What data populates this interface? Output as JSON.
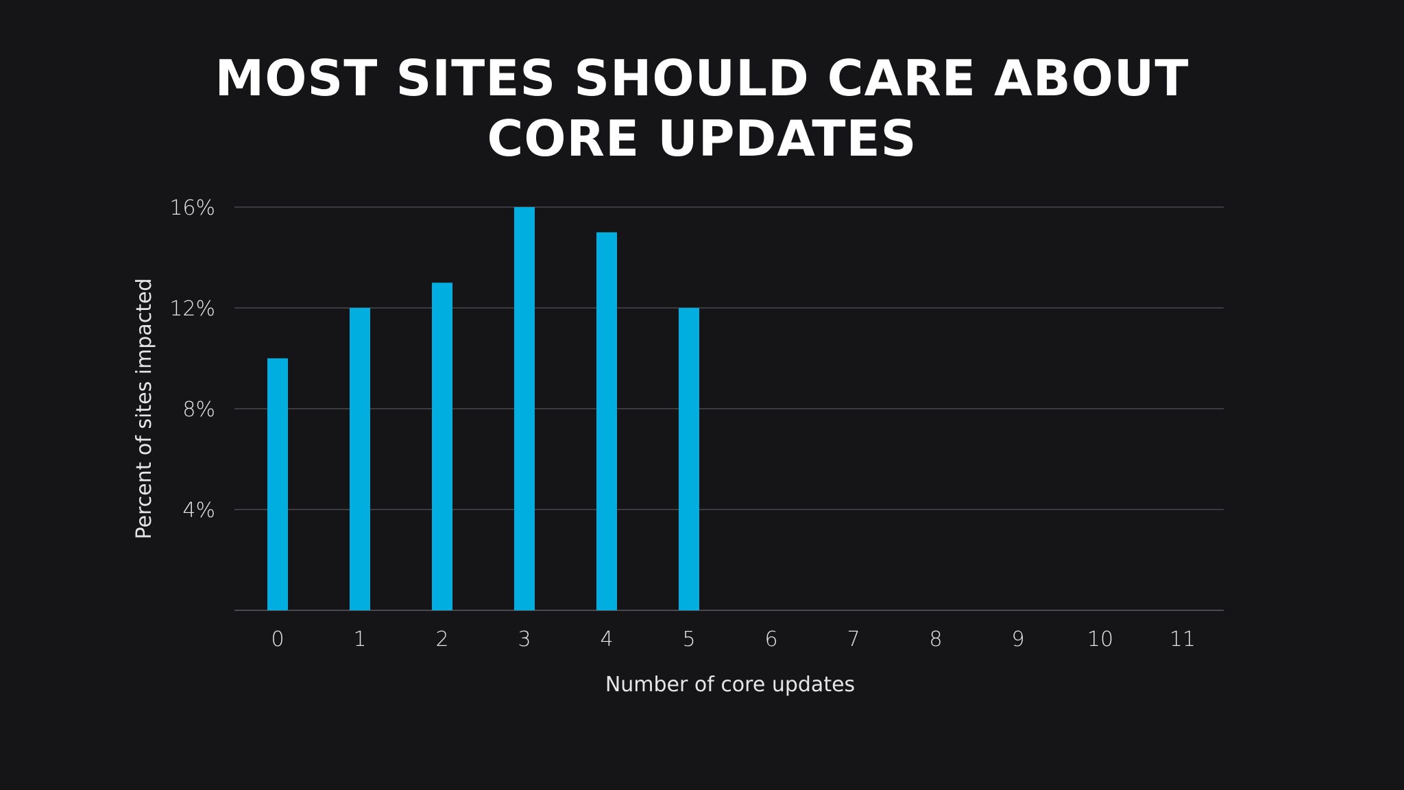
{
  "colors": {
    "background": "#151517",
    "bar": "#00aee0",
    "grid": "#4a4a4e",
    "text": "#e6e6e6",
    "title": "#ffffff"
  },
  "chart_data": {
    "type": "bar",
    "title_lines": [
      "MOST SITES SHOULD CARE ABOUT",
      "CORE UPDATES"
    ],
    "xlabel": "Number of core updates",
    "ylabel": "Percent of sites impacted",
    "categories": [
      "0",
      "1",
      "2",
      "3",
      "4",
      "5",
      "6",
      "7",
      "8",
      "9",
      "10",
      "11"
    ],
    "values": [
      10,
      12,
      13,
      16,
      15,
      12,
      null,
      null,
      null,
      null,
      null,
      null
    ],
    "ylim": [
      0,
      16
    ],
    "yticks": [
      4,
      8,
      12,
      16
    ],
    "ytick_labels": [
      "4%",
      "8%",
      "12%",
      "16%"
    ],
    "grid": true,
    "legend": null
  }
}
